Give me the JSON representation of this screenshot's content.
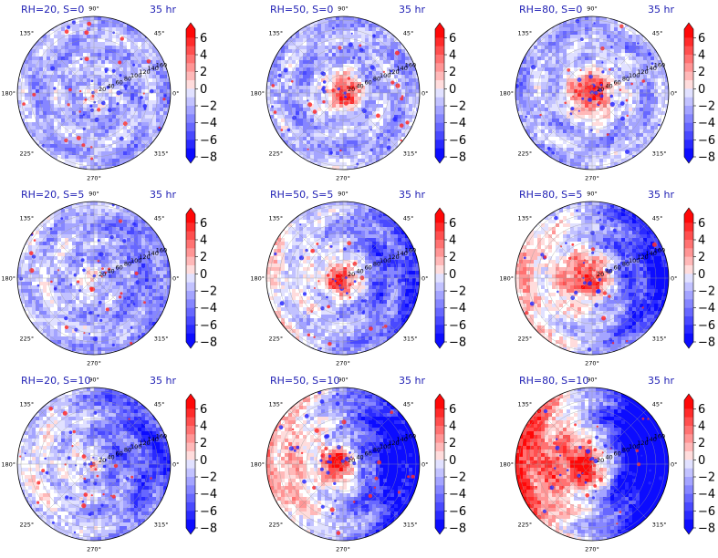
{
  "chart_data": {
    "type": "heatmap",
    "projection": "polar",
    "grid": true,
    "colormap": "bwr",
    "theta_tick_labels": [
      "0°",
      "45°",
      "90°",
      "135°",
      "180°",
      "225°",
      "270°",
      "315°"
    ],
    "radial_tick_labels": [
      "20",
      "40",
      "60",
      "80",
      "100",
      "120",
      "140",
      "160"
    ],
    "colorbar": {
      "ticks": [
        "6",
        "4",
        "2",
        "0",
        "−2",
        "−4",
        "−6",
        "−8"
      ],
      "range": [
        -8,
        7
      ],
      "extend": "both"
    },
    "time_label": "35 hr",
    "panels": [
      {
        "title": "RH=20, S=0",
        "rh": 20,
        "s": 0
      },
      {
        "title": "RH=50, S=0",
        "rh": 50,
        "s": 0
      },
      {
        "title": "RH=80, S=0",
        "rh": 80,
        "s": 0
      },
      {
        "title": "RH=20, S=5",
        "rh": 20,
        "s": 5
      },
      {
        "title": "RH=50, S=5",
        "rh": 50,
        "s": 5
      },
      {
        "title": "RH=80, S=5",
        "rh": 80,
        "s": 5
      },
      {
        "title": "RH=20, S=10",
        "rh": 20,
        "s": 10
      },
      {
        "title": "RH=50, S=10",
        "rh": 50,
        "s": 10
      },
      {
        "title": "RH=80, S=10",
        "rh": 80,
        "s": 10
      }
    ]
  }
}
